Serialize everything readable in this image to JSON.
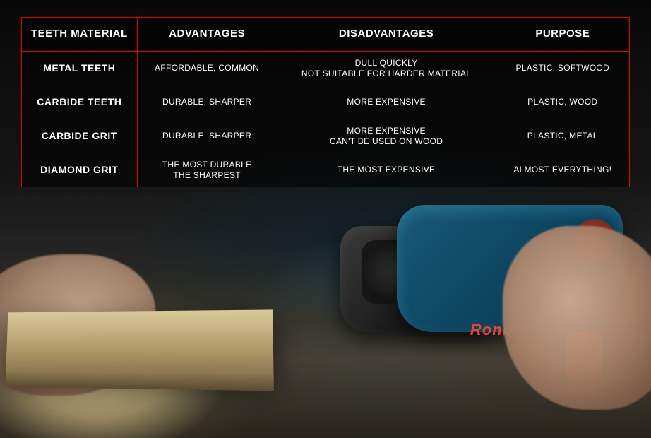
{
  "table": {
    "border_color": "#e60000",
    "text_color": "#ffffff",
    "bg_overlay": "rgba(0,0,0,0.55)",
    "header_fontsize": 15,
    "rowhead_fontsize": 14,
    "cell_fontsize": 12,
    "columns": [
      "TEETH MATERIAL",
      "ADVANTAGES",
      "DISADVANTAGES",
      "PURPOSE"
    ],
    "col_widths_pct": [
      19,
      23,
      36,
      22
    ],
    "rows": [
      {
        "name": "METAL TEETH",
        "advantages": "AFFORDABLE, COMMON",
        "disadvantages": "DULL QUICKLY\nNOT SUITABLE FOR HARDER MATERIAL",
        "purpose": "PLASTIC, SOFTWOOD"
      },
      {
        "name": "CARBIDE TEETH",
        "advantages": "DURABLE, SHARPER",
        "disadvantages": "MORE EXPENSIVE",
        "purpose": "PLASTIC, WOOD"
      },
      {
        "name": "CARBIDE GRIT",
        "advantages": "DURABLE, SHARPER",
        "disadvantages": "MORE EXPENSIVE\nCAN'T BE USED ON WOOD",
        "purpose": "PLASTIC, METAL"
      },
      {
        "name": "DIAMOND GRIT",
        "advantages": "THE MOST DURABLE\nTHE SHARPEST",
        "disadvantages": "THE MOST EXPENSIVE",
        "purpose": "ALMOST EVERYTHING!"
      }
    ]
  },
  "tool_brand": "Ronix",
  "tool_colors": {
    "body": "#0d4560",
    "accent": "#d04535",
    "guard": "#1a1a1a"
  }
}
